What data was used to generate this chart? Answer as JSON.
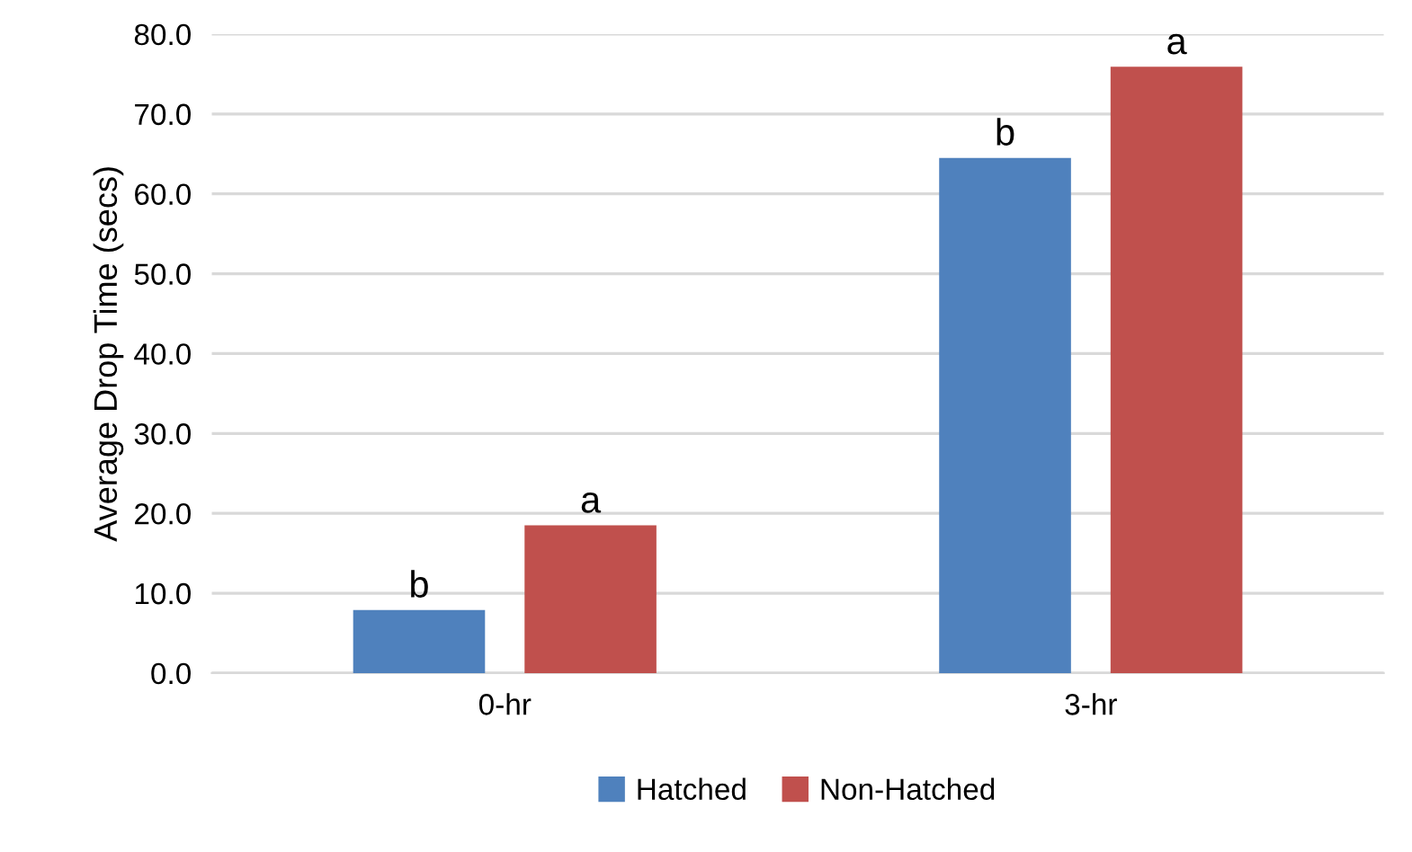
{
  "chart_data": {
    "type": "bar",
    "ylabel": "Average Drop Time (secs)",
    "categories": [
      "0-hr",
      "3-hr"
    ],
    "series": [
      {
        "name": "Hatched",
        "color": "#4f81bd",
        "values": [
          7.9,
          64.5
        ],
        "value_labels": [
          "b",
          "b"
        ]
      },
      {
        "name": "Non-Hatched",
        "color": "#c0504d",
        "values": [
          18.5,
          75.9
        ],
        "value_labels": [
          "a",
          "a"
        ]
      }
    ],
    "ylim": [
      0,
      80
    ],
    "yticks": [
      {
        "value": 0,
        "label": "0.0"
      },
      {
        "value": 10,
        "label": "10.0"
      },
      {
        "value": 20,
        "label": "20.0"
      },
      {
        "value": 30,
        "label": "30.0"
      },
      {
        "value": 40,
        "label": "40.0"
      },
      {
        "value": 50,
        "label": "50.0"
      },
      {
        "value": 60,
        "label": "60.0"
      },
      {
        "value": 70,
        "label": "70.0"
      },
      {
        "value": 80,
        "label": "80.0"
      }
    ],
    "grid": "y",
    "legend": "bottom"
  }
}
